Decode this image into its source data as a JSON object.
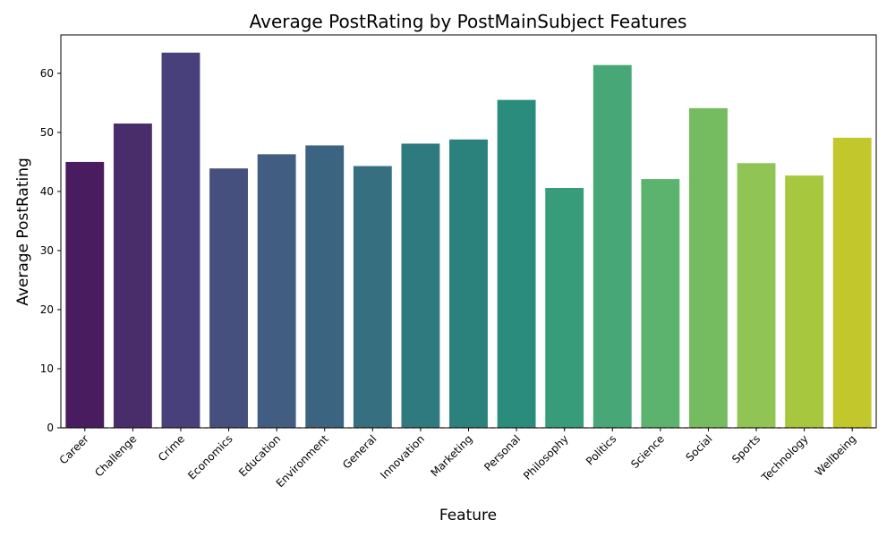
{
  "chart_data": {
    "type": "bar",
    "title": "Average PostRating by PostMainSubject Features",
    "xlabel": "Feature",
    "ylabel": "Average PostRating",
    "categories": [
      "Career",
      "Challenge",
      "Crime",
      "Economics",
      "Education",
      "Environment",
      "General",
      "Innovation",
      "Marketing",
      "Personal",
      "Philosophy",
      "Politics",
      "Science",
      "Social",
      "Sports",
      "Technology",
      "Wellbeing"
    ],
    "values": [
      45.0,
      51.5,
      63.5,
      43.9,
      46.3,
      47.8,
      44.3,
      48.1,
      48.8,
      55.5,
      40.6,
      61.4,
      42.1,
      54.1,
      44.8,
      42.7,
      49.1
    ],
    "colors": [
      "#481c5e",
      "#482d6a",
      "#48407a",
      "#46507e",
      "#415e82",
      "#3b6480",
      "#356f80",
      "#2e7a7e",
      "#2b817c",
      "#2a8c7c",
      "#369c7a",
      "#47a776",
      "#5bb36d",
      "#74bc5f",
      "#90c555",
      "#a7c83e",
      "#c2c72c"
    ],
    "ylim": [
      0,
      66.5
    ],
    "yticks": [
      0,
      10,
      20,
      30,
      40,
      50,
      60
    ],
    "grid": false,
    "legend": "none"
  }
}
